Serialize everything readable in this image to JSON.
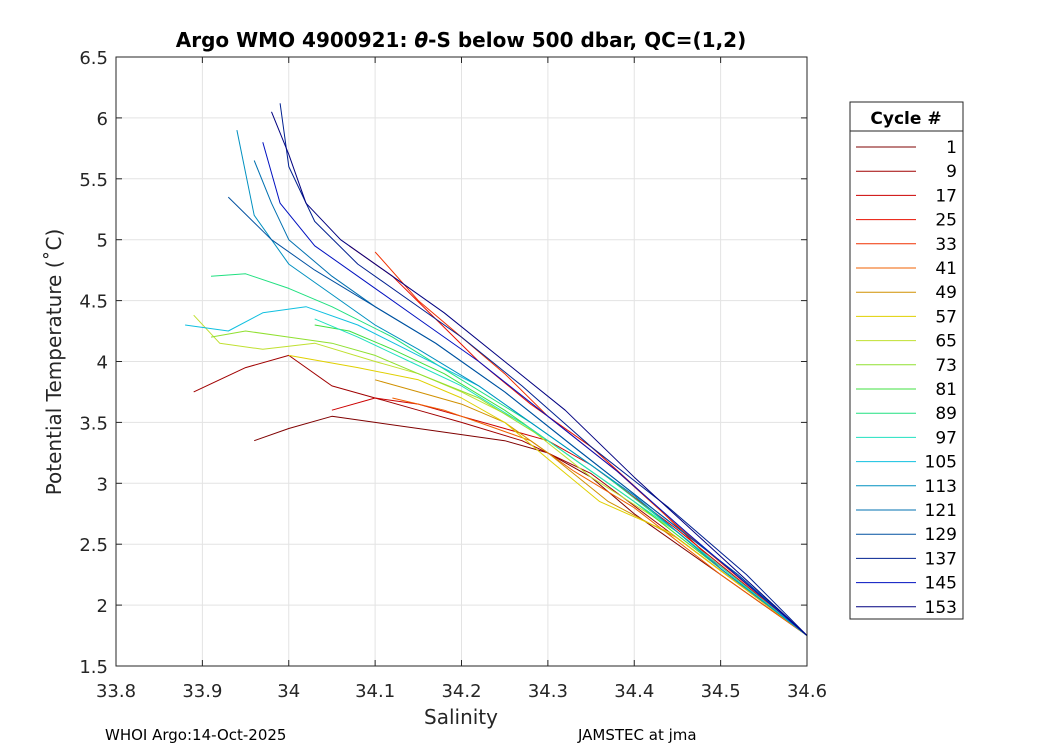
{
  "chart_data": {
    "type": "line",
    "title_prefix": "Argo WMO 4900921: ",
    "title_theta": "θ",
    "title_suffix": "-S below 500 dbar,  QC=(1,2)",
    "xlabel": "Salinity",
    "ylabel": "Potential Temperature (˚C)",
    "xlim": [
      33.8,
      34.6
    ],
    "ylim": [
      1.5,
      6.5
    ],
    "xticks": [
      33.8,
      33.9,
      34.0,
      34.1,
      34.2,
      34.3,
      34.4,
      34.5,
      34.6
    ],
    "xtick_labels": [
      "33.8",
      "33.9",
      "34",
      "34.1",
      "34.2",
      "34.3",
      "34.4",
      "34.5",
      "34.6"
    ],
    "yticks": [
      1.5,
      2,
      2.5,
      3,
      3.5,
      4,
      4.5,
      5,
      5.5,
      6,
      6.5
    ],
    "ytick_labels": [
      "1.5",
      "2",
      "2.5",
      "3",
      "3.5",
      "4",
      "4.5",
      "5",
      "5.5",
      "6",
      "6.5"
    ],
    "grid": true,
    "legend": {
      "title": "Cycle #",
      "placement": "outside-right",
      "entries": [
        {
          "label": "1",
          "color": "#7f0000"
        },
        {
          "label": "9",
          "color": "#a00000"
        },
        {
          "label": "17",
          "color": "#cc0000"
        },
        {
          "label": "25",
          "color": "#e81000"
        },
        {
          "label": "33",
          "color": "#f03000"
        },
        {
          "label": "41",
          "color": "#f06000"
        },
        {
          "label": "49",
          "color": "#d09000"
        },
        {
          "label": "57",
          "color": "#e0d000"
        },
        {
          "label": "65",
          "color": "#c0e030"
        },
        {
          "label": "73",
          "color": "#90e030"
        },
        {
          "label": "81",
          "color": "#40e040"
        },
        {
          "label": "89",
          "color": "#20e080"
        },
        {
          "label": "97",
          "color": "#20e0c0"
        },
        {
          "label": "105",
          "color": "#10c0e0"
        },
        {
          "label": "113",
          "color": "#0090c0"
        },
        {
          "label": "121",
          "color": "#0070b0"
        },
        {
          "label": "129",
          "color": "#0050a0"
        },
        {
          "label": "137",
          "color": "#002090"
        },
        {
          "label": "145",
          "color": "#0010c0"
        },
        {
          "label": "153",
          "color": "#000080"
        }
      ]
    },
    "series": [
      {
        "name": "1",
        "color": "#7f0000",
        "points": [
          [
            33.96,
            3.35
          ],
          [
            34.0,
            3.45
          ],
          [
            34.05,
            3.55
          ],
          [
            34.1,
            3.5
          ],
          [
            34.15,
            3.45
          ],
          [
            34.2,
            3.4
          ],
          [
            34.25,
            3.35
          ],
          [
            34.3,
            3.25
          ],
          [
            34.35,
            3.05
          ],
          [
            34.4,
            2.75
          ],
          [
            34.5,
            2.25
          ],
          [
            34.6,
            1.75
          ]
        ]
      },
      {
        "name": "9",
        "color": "#a00000",
        "points": [
          [
            33.89,
            3.75
          ],
          [
            33.95,
            3.95
          ],
          [
            34.0,
            4.05
          ],
          [
            34.05,
            3.8
          ],
          [
            34.1,
            3.7
          ],
          [
            34.15,
            3.6
          ],
          [
            34.2,
            3.5
          ],
          [
            34.27,
            3.35
          ],
          [
            34.35,
            3.08
          ],
          [
            34.45,
            2.55
          ],
          [
            34.6,
            1.75
          ]
        ]
      },
      {
        "name": "17",
        "color": "#cc0000",
        "points": [
          [
            34.05,
            3.6
          ],
          [
            34.1,
            3.7
          ],
          [
            34.15,
            3.65
          ],
          [
            34.2,
            3.55
          ],
          [
            34.25,
            3.45
          ],
          [
            34.3,
            3.35
          ],
          [
            34.35,
            3.15
          ],
          [
            34.45,
            2.62
          ],
          [
            34.6,
            1.75
          ]
        ]
      },
      {
        "name": "25",
        "color": "#e81000",
        "points": [
          [
            34.07,
            4.95
          ],
          [
            34.12,
            4.7
          ],
          [
            34.17,
            4.35
          ],
          [
            34.22,
            4.0
          ],
          [
            34.28,
            3.65
          ],
          [
            34.35,
            3.3
          ],
          [
            34.42,
            2.85
          ],
          [
            34.5,
            2.3
          ],
          [
            34.6,
            1.75
          ]
        ]
      },
      {
        "name": "33",
        "color": "#f03000",
        "points": [
          [
            34.1,
            4.9
          ],
          [
            34.15,
            4.5
          ],
          [
            34.2,
            4.2
          ],
          [
            34.25,
            3.9
          ],
          [
            34.3,
            3.55
          ],
          [
            34.38,
            3.1
          ],
          [
            34.45,
            2.65
          ],
          [
            34.6,
            1.75
          ]
        ]
      },
      {
        "name": "41",
        "color": "#f06000",
        "points": [
          [
            34.12,
            3.7
          ],
          [
            34.18,
            3.6
          ],
          [
            34.22,
            3.5
          ],
          [
            34.28,
            3.35
          ],
          [
            34.33,
            3.1
          ],
          [
            34.4,
            2.8
          ],
          [
            34.5,
            2.25
          ],
          [
            34.6,
            1.75
          ]
        ]
      },
      {
        "name": "49",
        "color": "#d09000",
        "points": [
          [
            34.1,
            3.85
          ],
          [
            34.15,
            3.75
          ],
          [
            34.2,
            3.65
          ],
          [
            34.25,
            3.5
          ],
          [
            34.3,
            3.25
          ],
          [
            34.37,
            2.85
          ],
          [
            34.45,
            2.55
          ],
          [
            34.6,
            1.75
          ]
        ]
      },
      {
        "name": "57",
        "color": "#e0d000",
        "points": [
          [
            34.0,
            4.05
          ],
          [
            34.08,
            3.95
          ],
          [
            34.15,
            3.85
          ],
          [
            34.2,
            3.7
          ],
          [
            34.25,
            3.5
          ],
          [
            34.3,
            3.2
          ],
          [
            34.36,
            2.85
          ],
          [
            34.44,
            2.6
          ],
          [
            34.6,
            1.75
          ]
        ]
      },
      {
        "name": "65",
        "color": "#c0e030",
        "points": [
          [
            33.89,
            4.38
          ],
          [
            33.92,
            4.15
          ],
          [
            33.97,
            4.1
          ],
          [
            34.03,
            4.15
          ],
          [
            34.1,
            4.0
          ],
          [
            34.15,
            3.9
          ],
          [
            34.2,
            3.75
          ],
          [
            34.27,
            3.5
          ],
          [
            34.35,
            3.05
          ],
          [
            34.45,
            2.6
          ],
          [
            34.6,
            1.75
          ]
        ]
      },
      {
        "name": "73",
        "color": "#90e030",
        "points": [
          [
            33.91,
            4.2
          ],
          [
            33.95,
            4.25
          ],
          [
            34.0,
            4.2
          ],
          [
            34.05,
            4.15
          ],
          [
            34.1,
            4.05
          ],
          [
            34.15,
            3.9
          ],
          [
            34.22,
            3.7
          ],
          [
            34.3,
            3.35
          ],
          [
            34.4,
            2.85
          ],
          [
            34.5,
            2.3
          ],
          [
            34.6,
            1.75
          ]
        ]
      },
      {
        "name": "81",
        "color": "#40e040",
        "points": [
          [
            34.03,
            4.3
          ],
          [
            34.07,
            4.25
          ],
          [
            34.12,
            4.1
          ],
          [
            34.18,
            3.9
          ],
          [
            34.25,
            3.6
          ],
          [
            34.32,
            3.25
          ],
          [
            34.4,
            2.85
          ],
          [
            34.5,
            2.3
          ],
          [
            34.6,
            1.75
          ]
        ]
      },
      {
        "name": "89",
        "color": "#20e080",
        "points": [
          [
            33.91,
            4.7
          ],
          [
            33.95,
            4.72
          ],
          [
            34.0,
            4.6
          ],
          [
            34.05,
            4.45
          ],
          [
            34.12,
            4.2
          ],
          [
            34.2,
            3.85
          ],
          [
            34.28,
            3.5
          ],
          [
            34.36,
            3.1
          ],
          [
            34.45,
            2.6
          ],
          [
            34.6,
            1.75
          ]
        ]
      },
      {
        "name": "97",
        "color": "#20e0c0",
        "points": [
          [
            34.03,
            4.35
          ],
          [
            34.08,
            4.2
          ],
          [
            34.14,
            4.0
          ],
          [
            34.2,
            3.8
          ],
          [
            34.28,
            3.45
          ],
          [
            34.36,
            3.05
          ],
          [
            34.45,
            2.6
          ],
          [
            34.6,
            1.75
          ]
        ]
      },
      {
        "name": "105",
        "color": "#10c0e0",
        "points": [
          [
            33.88,
            4.3
          ],
          [
            33.93,
            4.25
          ],
          [
            33.97,
            4.4
          ],
          [
            34.02,
            4.45
          ],
          [
            34.08,
            4.3
          ],
          [
            34.15,
            4.05
          ],
          [
            34.22,
            3.8
          ],
          [
            34.3,
            3.4
          ],
          [
            34.4,
            2.9
          ],
          [
            34.5,
            2.3
          ],
          [
            34.6,
            1.75
          ]
        ]
      },
      {
        "name": "113",
        "color": "#0090c0",
        "points": [
          [
            33.94,
            5.9
          ],
          [
            33.96,
            5.2
          ],
          [
            34.0,
            4.8
          ],
          [
            34.05,
            4.55
          ],
          [
            34.1,
            4.3
          ],
          [
            34.15,
            4.1
          ],
          [
            34.22,
            3.8
          ],
          [
            34.3,
            3.4
          ],
          [
            34.4,
            2.9
          ],
          [
            34.5,
            2.3
          ],
          [
            34.6,
            1.75
          ]
        ]
      },
      {
        "name": "121",
        "color": "#0070b0",
        "points": [
          [
            33.96,
            5.65
          ],
          [
            33.98,
            5.3
          ],
          [
            34.0,
            5.0
          ],
          [
            34.05,
            4.7
          ],
          [
            34.1,
            4.45
          ],
          [
            34.17,
            4.15
          ],
          [
            34.25,
            3.75
          ],
          [
            34.33,
            3.3
          ],
          [
            34.42,
            2.8
          ],
          [
            34.52,
            2.25
          ],
          [
            34.6,
            1.75
          ]
        ]
      },
      {
        "name": "129",
        "color": "#0050a0",
        "points": [
          [
            33.93,
            5.35
          ],
          [
            33.98,
            5.0
          ],
          [
            34.03,
            4.75
          ],
          [
            34.1,
            4.45
          ],
          [
            34.17,
            4.15
          ],
          [
            34.25,
            3.75
          ],
          [
            34.33,
            3.3
          ],
          [
            34.42,
            2.8
          ],
          [
            34.52,
            2.25
          ],
          [
            34.6,
            1.75
          ]
        ]
      },
      {
        "name": "137",
        "color": "#002090",
        "points": [
          [
            33.99,
            6.12
          ],
          [
            34.0,
            5.6
          ],
          [
            34.03,
            5.15
          ],
          [
            34.08,
            4.8
          ],
          [
            34.14,
            4.5
          ],
          [
            34.2,
            4.2
          ],
          [
            34.27,
            3.8
          ],
          [
            34.35,
            3.3
          ],
          [
            34.44,
            2.8
          ],
          [
            34.53,
            2.25
          ],
          [
            34.6,
            1.75
          ]
        ]
      },
      {
        "name": "145",
        "color": "#0010c0",
        "points": [
          [
            33.97,
            5.8
          ],
          [
            33.99,
            5.3
          ],
          [
            34.03,
            4.95
          ],
          [
            34.09,
            4.65
          ],
          [
            34.15,
            4.35
          ],
          [
            34.22,
            4.0
          ],
          [
            34.3,
            3.55
          ],
          [
            34.38,
            3.1
          ],
          [
            34.46,
            2.6
          ],
          [
            34.6,
            1.75
          ]
        ]
      },
      {
        "name": "153",
        "color": "#000080",
        "points": [
          [
            33.98,
            6.05
          ],
          [
            34.0,
            5.7
          ],
          [
            34.02,
            5.3
          ],
          [
            34.06,
            5.0
          ],
          [
            34.12,
            4.7
          ],
          [
            34.18,
            4.4
          ],
          [
            34.25,
            4.0
          ],
          [
            34.32,
            3.6
          ],
          [
            34.4,
            3.05
          ],
          [
            34.5,
            2.4
          ],
          [
            34.6,
            1.75
          ]
        ]
      }
    ]
  },
  "footer": {
    "left": "WHOI Argo:14-Oct-2025",
    "right": "JAMSTEC at jma"
  }
}
